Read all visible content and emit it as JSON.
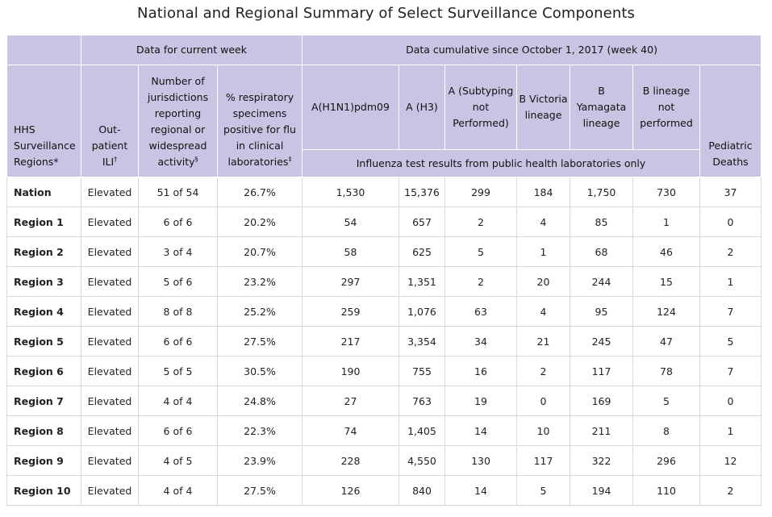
{
  "title": "National and Regional Summary of Select Surveillance Components",
  "group_headers": {
    "current_week": "Data for current week",
    "cumulative": "Data cumulative since October 1, 2017 (week 40)"
  },
  "columns": {
    "region": "HHS Surveillance Regions*",
    "ili": "Out-patient ILI",
    "ili_mark": "†",
    "jurisdictions": "Number of jurisdictions reporting regional or widespread activity",
    "jurisdictions_mark": "§",
    "pct_positive": "% respiratory specimens positive for flu in clinical laboratories",
    "pct_positive_mark": "‡",
    "h1n1": "A(H1N1)pdm09",
    "h3": "A (H3)",
    "a_subtyping": "A (Subtyping not Performed)",
    "b_victoria": "B Victoria lineage",
    "b_yamagata": "B Yamagata lineage",
    "b_lineage_np": "B lineage not performed",
    "pediatric_deaths": "Pediatric Deaths"
  },
  "lab_note": "Influenza test results from public health laboratories only",
  "rows": [
    {
      "region": "Nation",
      "ili": "Elevated",
      "jurisdictions": "51 of 54",
      "pct": "26.7%",
      "h1n1": "1,530",
      "h3": "15,376",
      "a_np": "299",
      "b_vic": "184",
      "b_yam": "1,750",
      "b_np": "730",
      "deaths": "37"
    },
    {
      "region": "Region 1",
      "ili": "Elevated",
      "jurisdictions": "6 of 6",
      "pct": "20.2%",
      "h1n1": "54",
      "h3": "657",
      "a_np": "2",
      "b_vic": "4",
      "b_yam": "85",
      "b_np": "1",
      "deaths": "0"
    },
    {
      "region": "Region 2",
      "ili": "Elevated",
      "jurisdictions": "3 of 4",
      "pct": "20.7%",
      "h1n1": "58",
      "h3": "625",
      "a_np": "5",
      "b_vic": "1",
      "b_yam": "68",
      "b_np": "46",
      "deaths": "2"
    },
    {
      "region": "Region 3",
      "ili": "Elevated",
      "jurisdictions": "5 of 6",
      "pct": "23.2%",
      "h1n1": "297",
      "h3": "1,351",
      "a_np": "2",
      "b_vic": "20",
      "b_yam": "244",
      "b_np": "15",
      "deaths": "1"
    },
    {
      "region": "Region 4",
      "ili": "Elevated",
      "jurisdictions": "8 of 8",
      "pct": "25.2%",
      "h1n1": "259",
      "h3": "1,076",
      "a_np": "63",
      "b_vic": "4",
      "b_yam": "95",
      "b_np": "124",
      "deaths": "7"
    },
    {
      "region": "Region 5",
      "ili": "Elevated",
      "jurisdictions": "6 of 6",
      "pct": "27.5%",
      "h1n1": "217",
      "h3": "3,354",
      "a_np": "34",
      "b_vic": "21",
      "b_yam": "245",
      "b_np": "47",
      "deaths": "5"
    },
    {
      "region": "Region 6",
      "ili": "Elevated",
      "jurisdictions": "5 of 5",
      "pct": "30.5%",
      "h1n1": "190",
      "h3": "755",
      "a_np": "16",
      "b_vic": "2",
      "b_yam": "117",
      "b_np": "78",
      "deaths": "7"
    },
    {
      "region": "Region 7",
      "ili": "Elevated",
      "jurisdictions": "4 of 4",
      "pct": "24.8%",
      "h1n1": "27",
      "h3": "763",
      "a_np": "19",
      "b_vic": "0",
      "b_yam": "169",
      "b_np": "5",
      "deaths": "0"
    },
    {
      "region": "Region 8",
      "ili": "Elevated",
      "jurisdictions": "6 of 6",
      "pct": "22.3%",
      "h1n1": "74",
      "h3": "1,405",
      "a_np": "14",
      "b_vic": "10",
      "b_yam": "211",
      "b_np": "8",
      "deaths": "1"
    },
    {
      "region": "Region 9",
      "ili": "Elevated",
      "jurisdictions": "4 of 5",
      "pct": "23.9%",
      "h1n1": "228",
      "h3": "4,550",
      "a_np": "130",
      "b_vic": "117",
      "b_yam": "322",
      "b_np": "296",
      "deaths": "12"
    },
    {
      "region": "Region 10",
      "ili": "Elevated",
      "jurisdictions": "4 of 4",
      "pct": "27.5%",
      "h1n1": "126",
      "h3": "840",
      "a_np": "14",
      "b_vic": "5",
      "b_yam": "194",
      "b_np": "110",
      "deaths": "2"
    }
  ],
  "colors": {
    "header_bg": "#cbc3e3",
    "border": "#d8d8d8"
  }
}
